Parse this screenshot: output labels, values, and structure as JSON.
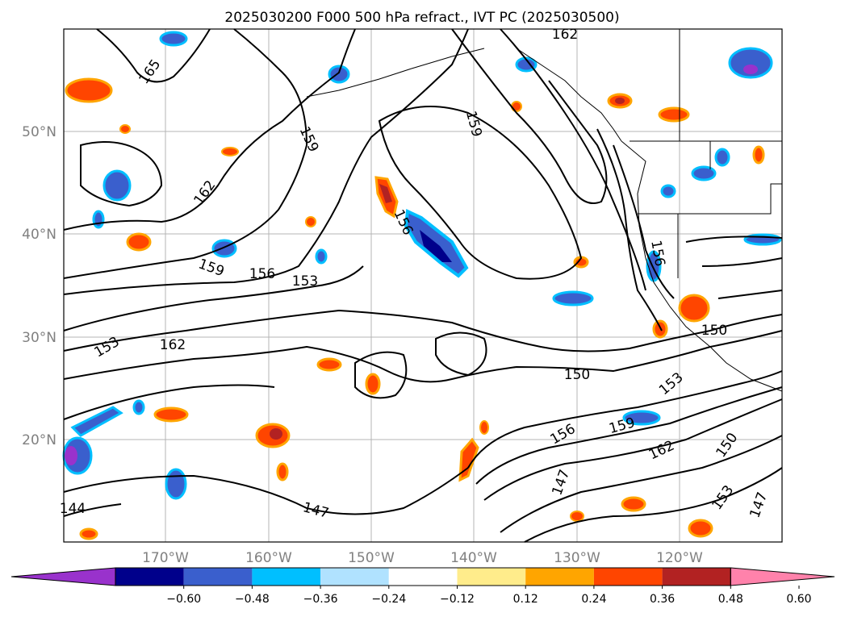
{
  "title": "2025030200 F000 500 hPa refract., IVT PC (2025030500)",
  "lat_labels": [
    "50°N",
    "40°N",
    "30°N",
    "20°N"
  ],
  "lon_labels": [
    "170°W",
    "160°W",
    "150°W",
    "140°W",
    "130°W",
    "120°W"
  ],
  "contour_labels": [
    "165",
    "162",
    "159",
    "156",
    "153",
    "150",
    "147",
    "144",
    "162",
    "159",
    "156",
    "153",
    "150",
    "147",
    "159",
    "156",
    "162",
    "153",
    "159",
    "162",
    "156",
    "150",
    "153",
    "147"
  ],
  "colorbar": {
    "ticks": [
      "−0.60",
      "−0.48",
      "−0.36",
      "−0.24",
      "−0.12",
      "0.12",
      "0.24",
      "0.36",
      "0.48",
      "0.60"
    ],
    "colors": [
      "#9932cc",
      "#00008b",
      "#3a5fcd",
      "#00bfff",
      "#b0e2ff",
      "#ffffff",
      "#ffec8b",
      "#ffa500",
      "#ff4500",
      "#b22222",
      "#ff82ab"
    ]
  }
}
